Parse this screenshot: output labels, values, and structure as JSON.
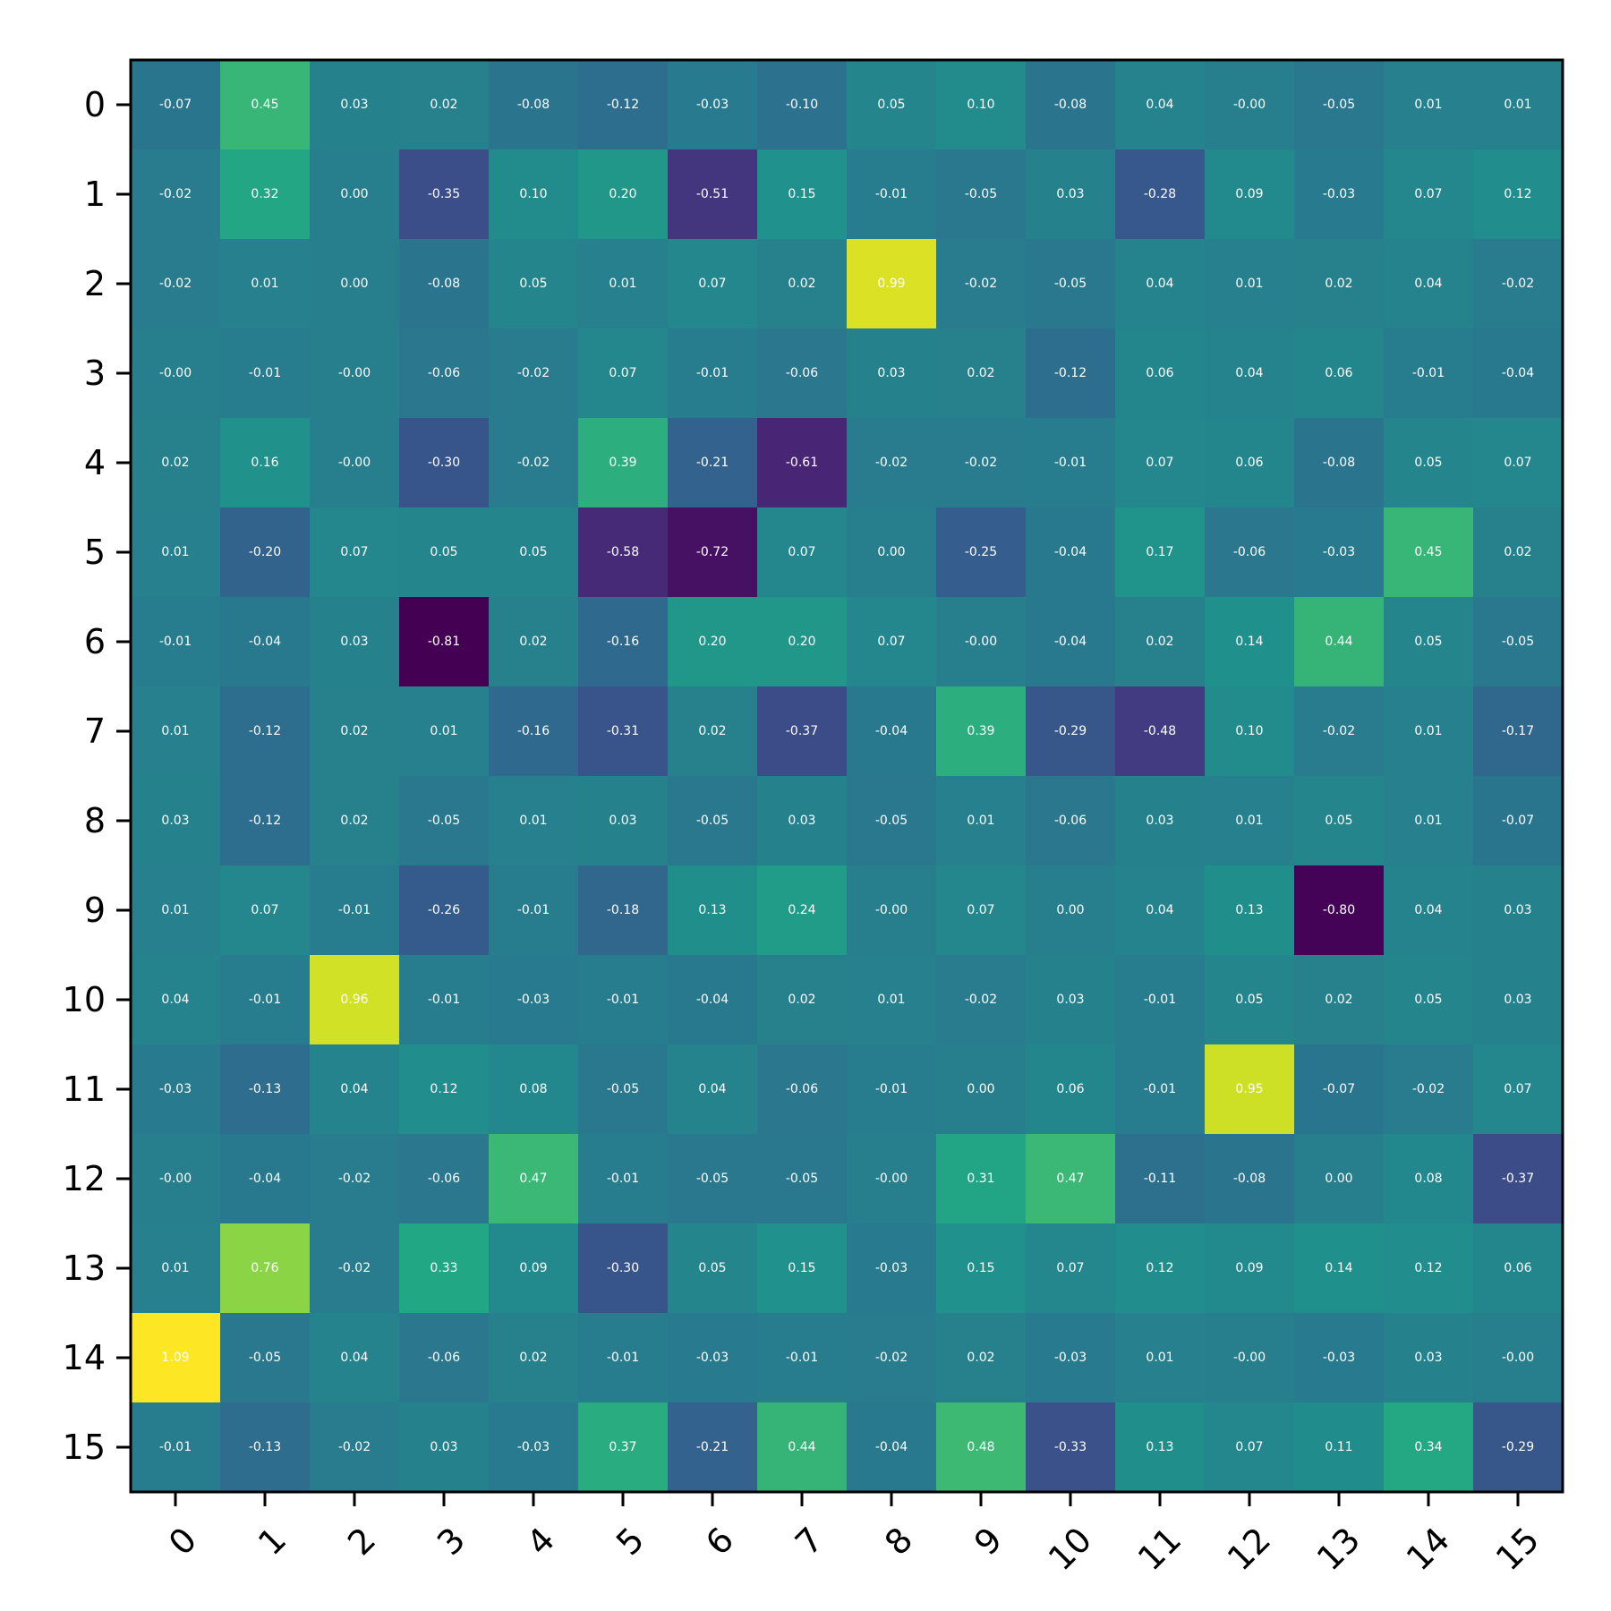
{
  "chart_data": {
    "type": "heatmap",
    "title": "",
    "xlabel": "",
    "ylabel": "",
    "colormap": "viridis",
    "vmin": -0.81,
    "vmax": 1.09,
    "grid": false,
    "x_ticks": [
      "0",
      "1",
      "2",
      "3",
      "4",
      "5",
      "6",
      "7",
      "8",
      "9",
      "10",
      "11",
      "12",
      "13",
      "14",
      "15"
    ],
    "y_ticks": [
      "0",
      "1",
      "2",
      "3",
      "4",
      "5",
      "6",
      "7",
      "8",
      "9",
      "10",
      "11",
      "12",
      "13",
      "14",
      "15"
    ],
    "values": [
      [
        "-0.07",
        "0.45",
        "0.03",
        "0.02",
        "-0.08",
        "-0.12",
        "-0.03",
        "-0.10",
        "0.05",
        "0.10",
        "-0.08",
        "0.04",
        "-0.00",
        "-0.05",
        "0.01",
        "0.01"
      ],
      [
        "-0.02",
        "0.32",
        "0.00",
        "-0.35",
        "0.10",
        "0.20",
        "-0.51",
        "0.15",
        "-0.01",
        "-0.05",
        "0.03",
        "-0.28",
        "0.09",
        "-0.03",
        "0.07",
        "0.12"
      ],
      [
        "-0.02",
        "0.01",
        "0.00",
        "-0.08",
        "0.05",
        "0.01",
        "0.07",
        "0.02",
        "0.99",
        "-0.02",
        "-0.05",
        "0.04",
        "0.01",
        "0.02",
        "0.04",
        "-0.02"
      ],
      [
        "-0.00",
        "-0.01",
        "-0.00",
        "-0.06",
        "-0.02",
        "0.07",
        "-0.01",
        "-0.06",
        "0.03",
        "0.02",
        "-0.12",
        "0.06",
        "0.04",
        "0.06",
        "-0.01",
        "-0.04"
      ],
      [
        "0.02",
        "0.16",
        "-0.00",
        "-0.30",
        "-0.02",
        "0.39",
        "-0.21",
        "-0.61",
        "-0.02",
        "-0.02",
        "-0.01",
        "0.07",
        "0.06",
        "-0.08",
        "0.05",
        "0.07"
      ],
      [
        "0.01",
        "-0.20",
        "0.07",
        "0.05",
        "0.05",
        "-0.58",
        "-0.72",
        "0.07",
        "0.00",
        "-0.25",
        "-0.04",
        "0.17",
        "-0.06",
        "-0.03",
        "0.45",
        "0.02"
      ],
      [
        "-0.01",
        "-0.04",
        "0.03",
        "-0.81",
        "0.02",
        "-0.16",
        "0.20",
        "0.20",
        "0.07",
        "-0.00",
        "-0.04",
        "0.02",
        "0.14",
        "0.44",
        "0.05",
        "-0.05"
      ],
      [
        "0.01",
        "-0.12",
        "0.02",
        "0.01",
        "-0.16",
        "-0.31",
        "0.02",
        "-0.37",
        "-0.04",
        "0.39",
        "-0.29",
        "-0.48",
        "0.10",
        "-0.02",
        "0.01",
        "-0.17"
      ],
      [
        "0.03",
        "-0.12",
        "0.02",
        "-0.05",
        "0.01",
        "0.03",
        "-0.05",
        "0.03",
        "-0.05",
        "0.01",
        "-0.06",
        "0.03",
        "0.01",
        "0.05",
        "0.01",
        "-0.07"
      ],
      [
        "0.01",
        "0.07",
        "-0.01",
        "-0.26",
        "-0.01",
        "-0.18",
        "0.13",
        "0.24",
        "-0.00",
        "0.07",
        "0.00",
        "0.04",
        "0.13",
        "-0.80",
        "0.04",
        "0.03"
      ],
      [
        "0.04",
        "-0.01",
        "0.96",
        "-0.01",
        "-0.03",
        "-0.01",
        "-0.04",
        "0.02",
        "0.01",
        "-0.02",
        "0.03",
        "-0.01",
        "0.05",
        "0.02",
        "0.05",
        "0.03"
      ],
      [
        "-0.03",
        "-0.13",
        "0.04",
        "0.12",
        "0.08",
        "-0.05",
        "0.04",
        "-0.06",
        "-0.01",
        "0.00",
        "0.06",
        "-0.01",
        "0.95",
        "-0.07",
        "-0.02",
        "0.07"
      ],
      [
        "-0.00",
        "-0.04",
        "-0.02",
        "-0.06",
        "0.47",
        "-0.01",
        "-0.05",
        "-0.05",
        "-0.00",
        "0.31",
        "0.47",
        "-0.11",
        "-0.08",
        "0.00",
        "0.08",
        "-0.37"
      ],
      [
        "0.01",
        "0.76",
        "-0.02",
        "0.33",
        "0.09",
        "-0.30",
        "0.05",
        "0.15",
        "-0.03",
        "0.15",
        "0.07",
        "0.12",
        "0.09",
        "0.14",
        "0.12",
        "0.06"
      ],
      [
        "1.09",
        "-0.05",
        "0.04",
        "-0.06",
        "0.02",
        "-0.01",
        "-0.03",
        "-0.01",
        "-0.02",
        "0.02",
        "-0.03",
        "0.01",
        "-0.00",
        "-0.03",
        "0.03",
        "-0.00"
      ],
      [
        "-0.01",
        "-0.13",
        "-0.02",
        "0.03",
        "-0.03",
        "0.37",
        "-0.21",
        "0.44",
        "-0.04",
        "0.48",
        "-0.33",
        "0.13",
        "0.07",
        "0.11",
        "0.34",
        "-0.29"
      ]
    ]
  }
}
